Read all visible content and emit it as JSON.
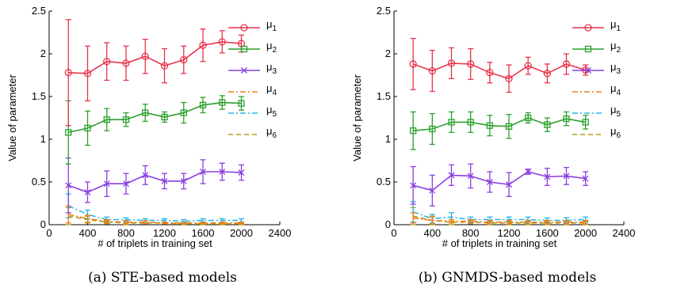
{
  "chart_data": [
    {
      "type": "line",
      "caption": "(a) STE-based models",
      "xlabel": "# of triplets in training set",
      "ylabel": "Value of parameter",
      "xlim": [
        0,
        2400
      ],
      "ylim": [
        0,
        2.5
      ],
      "xticks": [
        "0",
        "400",
        "800",
        "1200",
        "1600",
        "2000",
        "2400"
      ],
      "yticks": [
        "0",
        "0.5",
        "1",
        "1.5",
        "2",
        "2.5"
      ],
      "legend_position": "right",
      "x": [
        200,
        400,
        600,
        800,
        1000,
        1200,
        1400,
        1600,
        1800,
        2000
      ],
      "series": [
        {
          "symbol": "μ",
          "sub": "1",
          "color": "#e8344a",
          "style": "solid",
          "marker": "circle",
          "values": [
            1.78,
            1.77,
            1.91,
            1.89,
            1.97,
            1.86,
            1.93,
            2.1,
            2.14,
            2.12
          ],
          "errors": [
            0.62,
            0.32,
            0.22,
            0.2,
            0.2,
            0.2,
            0.16,
            0.19,
            0.13,
            0.1
          ]
        },
        {
          "symbol": "μ",
          "sub": "2",
          "color": "#2ca02c",
          "style": "solid",
          "marker": "square",
          "values": [
            1.08,
            1.13,
            1.23,
            1.23,
            1.31,
            1.26,
            1.31,
            1.4,
            1.43,
            1.42
          ],
          "errors": [
            0.37,
            0.2,
            0.13,
            0.08,
            0.1,
            0.06,
            0.12,
            0.09,
            0.08,
            0.08
          ]
        },
        {
          "symbol": "μ",
          "sub": "3",
          "color": "#8a3ee0",
          "style": "solid",
          "marker": "x",
          "values": [
            0.46,
            0.38,
            0.48,
            0.48,
            0.58,
            0.51,
            0.51,
            0.62,
            0.62,
            0.61
          ],
          "errors": [
            0.32,
            0.12,
            0.15,
            0.12,
            0.11,
            0.09,
            0.09,
            0.14,
            0.1,
            0.09
          ]
        },
        {
          "symbol": "μ",
          "sub": "4",
          "color": "#f07f18",
          "style": "dashdot",
          "marker": "none",
          "values": [
            0.12,
            0.07,
            0.04,
            0.03,
            0.03,
            0.02,
            0.02,
            0.02,
            0.02,
            0.02
          ],
          "errors": [
            0.1,
            0.04,
            0.02,
            0.02,
            0.02,
            0.01,
            0.01,
            0.01,
            0.01,
            0.01
          ]
        },
        {
          "symbol": "μ",
          "sub": "5",
          "color": "#26b6e8",
          "style": "dashdot",
          "marker": "none",
          "values": [
            0.22,
            0.12,
            0.06,
            0.06,
            0.05,
            0.05,
            0.04,
            0.05,
            0.05,
            0.05
          ],
          "errors": [
            0.14,
            0.05,
            0.03,
            0.02,
            0.02,
            0.02,
            0.02,
            0.02,
            0.02,
            0.02
          ]
        },
        {
          "symbol": "μ",
          "sub": "6",
          "color": "#b59a1a",
          "style": "dashed",
          "marker": "none",
          "values": [
            0.1,
            0.06,
            0.03,
            0.02,
            0.02,
            0.02,
            0.01,
            0.01,
            0.01,
            0.01
          ],
          "errors": [
            0.1,
            0.04,
            0.02,
            0.02,
            0.01,
            0.01,
            0.01,
            0.01,
            0.01,
            0.01
          ]
        }
      ]
    },
    {
      "type": "line",
      "caption": "(b) GNMDS-based models",
      "xlabel": "# of triplets in training set",
      "ylabel": "Value of parameter",
      "xlim": [
        0,
        2400
      ],
      "ylim": [
        0,
        2.5
      ],
      "xticks": [
        "0",
        "400",
        "800",
        "1200",
        "1600",
        "2000",
        "2400"
      ],
      "yticks": [
        "0",
        "0.5",
        "1",
        "1.5",
        "2",
        "2.5"
      ],
      "legend_position": "right",
      "x": [
        200,
        400,
        600,
        800,
        1000,
        1200,
        1400,
        1600,
        1800,
        2000
      ],
      "series": [
        {
          "symbol": "μ",
          "sub": "1",
          "color": "#e8344a",
          "style": "solid",
          "marker": "circle",
          "values": [
            1.88,
            1.8,
            1.89,
            1.88,
            1.78,
            1.71,
            1.86,
            1.77,
            1.88,
            1.81
          ],
          "errors": [
            0.3,
            0.24,
            0.18,
            0.18,
            0.12,
            0.16,
            0.1,
            0.11,
            0.12,
            0.06
          ]
        },
        {
          "symbol": "μ",
          "sub": "2",
          "color": "#2ca02c",
          "style": "solid",
          "marker": "square",
          "values": [
            1.1,
            1.12,
            1.2,
            1.2,
            1.16,
            1.15,
            1.25,
            1.17,
            1.24,
            1.2
          ],
          "errors": [
            0.22,
            0.18,
            0.12,
            0.12,
            0.12,
            0.14,
            0.06,
            0.08,
            0.08,
            0.08
          ]
        },
        {
          "symbol": "μ",
          "sub": "3",
          "color": "#8a3ee0",
          "style": "solid",
          "marker": "x",
          "values": [
            0.46,
            0.4,
            0.58,
            0.57,
            0.5,
            0.47,
            0.62,
            0.56,
            0.57,
            0.54
          ],
          "errors": [
            0.22,
            0.18,
            0.12,
            0.14,
            0.12,
            0.14,
            0.03,
            0.1,
            0.1,
            0.08
          ]
        },
        {
          "symbol": "μ",
          "sub": "4",
          "color": "#f07f18",
          "style": "dashdot",
          "marker": "none",
          "values": [
            0.08,
            0.05,
            0.04,
            0.04,
            0.03,
            0.03,
            0.03,
            0.03,
            0.03,
            0.03
          ],
          "errors": [
            0.06,
            0.04,
            0.02,
            0.02,
            0.02,
            0.02,
            0.02,
            0.02,
            0.02,
            0.02
          ]
        },
        {
          "symbol": "μ",
          "sub": "5",
          "color": "#26b6e8",
          "style": "dashdot",
          "marker": "none",
          "values": [
            0.15,
            0.07,
            0.09,
            0.06,
            0.06,
            0.06,
            0.06,
            0.05,
            0.05,
            0.06
          ],
          "errors": [
            0.12,
            0.05,
            0.05,
            0.03,
            0.03,
            0.03,
            0.03,
            0.03,
            0.03,
            0.03
          ]
        },
        {
          "symbol": "μ",
          "sub": "6",
          "color": "#b59a1a",
          "style": "dashed",
          "marker": "none",
          "values": [
            0.1,
            0.05,
            0.03,
            0.03,
            0.02,
            0.02,
            0.02,
            0.02,
            0.02,
            0.02
          ],
          "errors": [
            0.1,
            0.05,
            0.03,
            0.02,
            0.02,
            0.02,
            0.02,
            0.02,
            0.02,
            0.02
          ]
        }
      ]
    }
  ]
}
